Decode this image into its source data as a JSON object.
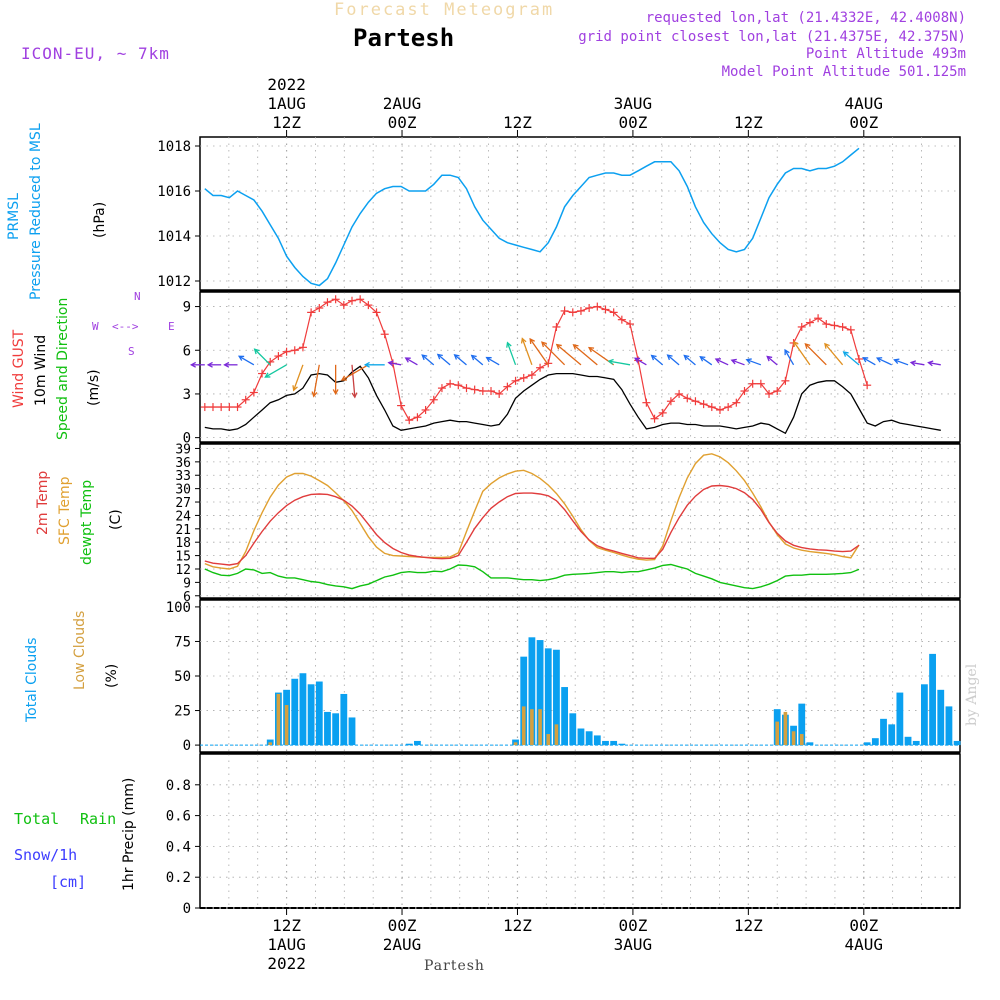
{
  "header": {
    "product": "Forecast Meteogram",
    "place": "Partesh",
    "model": "ICON-EU, ~ 7km",
    "requested": "requested lon,lat (21.4332E, 42.4008N)",
    "gridpoint": "grid point closest lon,lat (21.4375E, 42.375N)",
    "point_alt": "Point Altitude 493m",
    "model_alt": "Model Point Altitude 501.125m"
  },
  "footer": {
    "place": "Partesh",
    "credit": "by Angel"
  },
  "colors": {
    "pressure": "#0ca0f0",
    "gust": "#f03c3c",
    "wind": "#000000",
    "wind_dir": "#10c010",
    "t2m": "#e03c3c",
    "tsfc": "#e0a030",
    "dewpt": "#10c010",
    "total_clouds": "#0aa0f0",
    "low_clouds": "#d4a040",
    "snow": "#3c3cff",
    "legend_purple": "#a040e0",
    "grid": "#aaaaaa"
  },
  "chart_data": [
    {
      "type": "line",
      "id": "pressure",
      "title": "PRMSL Pressure Reduced to MSL",
      "legend": [
        "PRMSL",
        "Pressure Reduced to MSL"
      ],
      "ylabel": "(hPa)",
      "ylim": [
        1011.6,
        1018.4
      ],
      "yticks": [
        1012,
        1014,
        1016,
        1018
      ],
      "t0_hour": 0,
      "step_h": 1,
      "values": [
        1016.1,
        1015.8,
        1015.8,
        1015.7,
        1016.0,
        1015.8,
        1015.6,
        1015.1,
        1014.5,
        1013.9,
        1013.1,
        1012.6,
        1012.2,
        1011.9,
        1011.8,
        1012.1,
        1012.8,
        1013.6,
        1014.4,
        1015.0,
        1015.5,
        1015.9,
        1016.1,
        1016.2,
        1016.2,
        1016.0,
        1016.0,
        1016.0,
        1016.3,
        1016.7,
        1016.7,
        1016.6,
        1016.1,
        1015.3,
        1014.7,
        1014.3,
        1013.9,
        1013.7,
        1013.6,
        1013.5,
        1013.4,
        1013.3,
        1013.7,
        1014.4,
        1015.3,
        1015.8,
        1016.2,
        1016.6,
        1016.7,
        1016.8,
        1016.8,
        1016.7,
        1016.7,
        1016.9,
        1017.1,
        1017.3,
        1017.3,
        1017.3,
        1016.9,
        1016.2,
        1015.3,
        1014.6,
        1014.1,
        1013.7,
        1013.4,
        1013.3,
        1013.4,
        1013.9,
        1014.8,
        1015.7,
        1016.3,
        1016.8,
        1017.0,
        1017.0,
        1016.9,
        1017.0,
        1017.0,
        1017.1,
        1017.3,
        1017.6,
        1017.9
      ]
    },
    {
      "type": "line",
      "id": "wind",
      "legend": [
        "Wind GUST",
        "10m Wind",
        "Speed and Direction"
      ],
      "ylabel": "(m/s)",
      "compass": {
        "north": "N",
        "south": "S",
        "west": "W",
        "east": "E",
        "arrow": "<-->"
      },
      "ylim": [
        -0.3,
        10
      ],
      "yticks": [
        0,
        3,
        6,
        9
      ],
      "t0_hour": 0,
      "step_h": 1,
      "gust": [
        2.1,
        2.1,
        2.1,
        2.1,
        2.1,
        2.6,
        3.1,
        4.4,
        5.2,
        5.6,
        5.9,
        6.0,
        6.2,
        8.6,
        8.9,
        9.3,
        9.5,
        9.1,
        9.4,
        9.5,
        9.1,
        8.6,
        7.1,
        5.1,
        2.2,
        1.2,
        1.4,
        1.9,
        2.6,
        3.4,
        3.7,
        3.6,
        3.4,
        3.3,
        3.2,
        3.2,
        3.0,
        3.5,
        3.9,
        4.1,
        4.3,
        4.8,
        5.1,
        7.6,
        8.7,
        8.6,
        8.7,
        8.9,
        9.0,
        8.8,
        8.6,
        8.1,
        7.8,
        5.3,
        2.4,
        1.3,
        1.7,
        2.5,
        3.0,
        2.7,
        2.5,
        2.3,
        2.1,
        1.9,
        2.1,
        2.4,
        3.2,
        3.7,
        3.7,
        3.0,
        3.2,
        3.9,
        6.5,
        7.6,
        7.9,
        8.2,
        7.8,
        7.7,
        7.6,
        7.4,
        5.4,
        3.6
      ],
      "wind": [
        0.7,
        0.6,
        0.6,
        0.5,
        0.6,
        0.9,
        1.4,
        1.9,
        2.4,
        2.6,
        2.9,
        3.0,
        3.4,
        4.3,
        4.4,
        4.3,
        3.8,
        3.9,
        4.5,
        4.9,
        4.1,
        2.9,
        1.9,
        0.8,
        0.5,
        0.6,
        0.7,
        0.8,
        1.0,
        1.1,
        1.2,
        1.1,
        1.1,
        1.0,
        0.9,
        0.8,
        0.9,
        1.6,
        2.7,
        3.2,
        3.6,
        4.0,
        4.3,
        4.4,
        4.4,
        4.4,
        4.3,
        4.2,
        4.2,
        4.1,
        4.0,
        3.3,
        2.3,
        1.4,
        0.6,
        0.7,
        0.9,
        1.0,
        1.0,
        0.9,
        0.9,
        0.8,
        0.8,
        0.8,
        0.7,
        0.6,
        0.7,
        0.8,
        1.0,
        0.9,
        0.6,
        0.3,
        1.4,
        3.0,
        3.6,
        3.8,
        3.9,
        3.9,
        3.5,
        3.0,
        2.0,
        1.0,
        0.8,
        1.1,
        1.2,
        1.0,
        0.9,
        0.8,
        0.7,
        0.6,
        0.5
      ],
      "arrow_dirs": [
        270,
        270,
        270,
        270,
        270,
        270,
        240,
        240,
        225,
        220,
        300,
        330,
        340,
        345,
        350,
        355,
        0,
        0,
        5,
        10,
        300,
        270,
        270,
        270,
        260,
        250,
        240,
        230,
        230,
        230,
        230,
        230,
        230,
        230,
        230,
        230,
        240,
        210,
        200,
        180,
        200,
        210,
        215,
        220,
        225,
        225,
        230,
        230,
        230,
        230,
        235,
        240,
        260,
        250,
        240,
        230,
        230,
        230,
        230,
        230,
        230,
        230,
        235,
        240,
        245,
        250,
        250,
        240,
        250,
        260,
        230,
        210,
        210,
        210,
        215,
        220,
        225,
        225,
        220,
        215,
        230,
        240,
        240,
        240,
        245,
        250,
        250,
        255,
        260,
        260,
        260,
        265,
        270
      ]
    },
    {
      "type": "line",
      "id": "temperature",
      "legend": [
        "2m Temp",
        "SFC Temp",
        "dewpt Temp"
      ],
      "ylabel": "(C)",
      "ylim": [
        5.5,
        40
      ],
      "yticks": [
        6,
        9,
        12,
        15,
        18,
        21,
        24,
        27,
        30,
        33,
        36,
        39
      ],
      "t0_hour": 0,
      "step_h": 1,
      "t2m": [
        13.8,
        13.3,
        13.1,
        12.9,
        13.2,
        15.0,
        17.8,
        20.4,
        22.7,
        24.6,
        26.2,
        27.4,
        28.2,
        28.7,
        28.8,
        28.7,
        28.2,
        27.4,
        26.1,
        24.3,
        22.0,
        19.7,
        17.9,
        16.6,
        15.7,
        15.1,
        14.8,
        14.6,
        14.4,
        14.3,
        14.4,
        15.0,
        18.0,
        21.1,
        23.5,
        25.6,
        27.0,
        28.2,
        28.9,
        29.0,
        29.0,
        28.8,
        28.4,
        27.3,
        25.3,
        22.8,
        20.4,
        18.5,
        17.2,
        16.5,
        16.0,
        15.5,
        15.0,
        14.5,
        14.4,
        14.4,
        16.4,
        20.2,
        23.5,
        26.3,
        28.3,
        29.8,
        30.6,
        30.7,
        30.5,
        30.0,
        29.1,
        27.6,
        25.3,
        22.4,
        20.0,
        18.3,
        17.3,
        16.8,
        16.5,
        16.3,
        16.2,
        16.0,
        15.9,
        16.0,
        17.3
      ],
      "tsfc": [
        13.2,
        12.5,
        12.2,
        12.0,
        12.6,
        15.9,
        20.6,
        24.6,
        28.1,
        30.8,
        32.6,
        33.4,
        33.4,
        32.8,
        31.8,
        30.7,
        29.1,
        27.3,
        25.1,
        22.2,
        19.2,
        16.9,
        15.5,
        15.0,
        14.9,
        14.8,
        14.7,
        14.6,
        14.6,
        14.6,
        14.7,
        15.6,
        20.4,
        25.0,
        29.4,
        31.1,
        32.4,
        33.3,
        33.9,
        34.1,
        33.4,
        32.3,
        30.8,
        28.9,
        26.6,
        23.8,
        20.8,
        18.4,
        16.8,
        16.2,
        15.7,
        15.1,
        14.6,
        14.2,
        14.0,
        14.1,
        17.2,
        22.8,
        28.0,
        32.4,
        35.6,
        37.5,
        37.8,
        37.1,
        35.8,
        34.0,
        31.8,
        29.0,
        25.9,
        22.5,
        19.7,
        17.6,
        16.7,
        16.2,
        15.9,
        15.7,
        15.5,
        15.2,
        14.8,
        14.5,
        17.4
      ],
      "dewpt": [
        12.0,
        11.2,
        10.6,
        10.5,
        11.0,
        12.0,
        11.8,
        11.0,
        11.2,
        10.4,
        10.0,
        10.0,
        9.6,
        9.2,
        9.0,
        8.5,
        8.2,
        8.0,
        7.6,
        8.2,
        8.6,
        9.4,
        10.2,
        10.6,
        11.2,
        11.4,
        11.2,
        11.2,
        11.5,
        11.4,
        12.0,
        12.9,
        12.8,
        12.5,
        11.4,
        10.0,
        10.0,
        10.0,
        9.8,
        9.6,
        9.6,
        9.4,
        9.6,
        10.0,
        10.6,
        10.8,
        10.9,
        11.0,
        11.2,
        11.4,
        11.4,
        11.2,
        11.4,
        11.4,
        11.8,
        12.2,
        12.8,
        13.0,
        12.5,
        12.0,
        11.0,
        10.4,
        9.8,
        9.0,
        8.6,
        8.2,
        7.8,
        7.6,
        8.0,
        8.6,
        9.4,
        10.4,
        10.6,
        10.6,
        10.8,
        10.8,
        10.8,
        10.9,
        11.0,
        11.2,
        11.9
      ]
    },
    {
      "type": "bar",
      "id": "clouds",
      "legend": [
        "Total Clouds",
        "Low Clouds"
      ],
      "ylabel": "(%)",
      "ylim": [
        -5,
        105
      ],
      "yticks": [
        0,
        25,
        50,
        75,
        100
      ],
      "t0_hour": 0,
      "step_h": 1,
      "total": [
        0,
        0,
        0,
        0,
        0,
        0,
        0,
        0,
        4,
        38,
        40,
        48,
        52,
        44,
        46,
        24,
        23,
        37,
        20,
        0,
        0,
        0,
        0,
        0,
        0,
        1,
        3,
        0,
        0,
        0,
        0,
        0,
        0,
        0,
        0,
        0,
        0,
        0,
        4,
        64,
        78,
        76,
        70,
        69,
        42,
        23,
        12,
        10,
        7,
        3,
        3,
        1,
        0,
        0,
        0,
        0,
        0,
        0,
        0,
        0,
        0,
        0,
        0,
        0,
        0,
        0,
        0,
        0,
        0,
        0,
        26,
        22,
        14,
        30,
        2,
        0,
        0,
        0,
        0,
        0,
        0,
        2,
        5,
        19,
        15,
        38,
        6,
        3,
        44,
        66,
        40,
        28,
        3
      ],
      "low": [
        0,
        0,
        0,
        0,
        0,
        0,
        0,
        0,
        2,
        37,
        29,
        0,
        0,
        0,
        0,
        0,
        0,
        0,
        0,
        0,
        0,
        0,
        0,
        0,
        0,
        0,
        0,
        0,
        0,
        0,
        0,
        0,
        0,
        0,
        0,
        0,
        0,
        0,
        2,
        28,
        26,
        26,
        8,
        15,
        0,
        0,
        0,
        0,
        0,
        0,
        0,
        0,
        0,
        0,
        0,
        0,
        0,
        0,
        0,
        0,
        0,
        0,
        0,
        0,
        0,
        0,
        0,
        0,
        0,
        0,
        17,
        24,
        10,
        8,
        0,
        0,
        0,
        0,
        0,
        0,
        0,
        0,
        0,
        0,
        0,
        0,
        0,
        0,
        0,
        0,
        0,
        0,
        0
      ]
    },
    {
      "type": "bar",
      "id": "precip",
      "legend": [
        "Total",
        "Rain",
        "Snow/1h",
        "[cm]"
      ],
      "ylabel": "1hr Precip (mm)",
      "ylim": [
        0,
        1.0
      ],
      "yticks": [
        0,
        0.2,
        0.4,
        0.6,
        0.8
      ],
      "ytick_labels": [
        "0",
        "0.2",
        "0.4",
        "0.6",
        "0.8"
      ],
      "values": []
    }
  ],
  "time_axis": {
    "top": [
      {
        "hour": 0,
        "label": [
          "2022",
          "1AUG",
          "12Z"
        ]
      },
      {
        "hour": 12,
        "label": [
          "2AUG",
          "00Z"
        ]
      },
      {
        "hour": 24,
        "label": [
          "12Z"
        ]
      },
      {
        "hour": 36,
        "label": [
          "3AUG",
          "00Z"
        ]
      },
      {
        "hour": 48,
        "label": [
          "12Z"
        ]
      },
      {
        "hour": 60,
        "label": [
          "4AUG",
          "00Z"
        ]
      }
    ],
    "bottom": [
      {
        "hour": 0,
        "label": [
          "12Z",
          "1AUG",
          "2022"
        ]
      },
      {
        "hour": 12,
        "label": [
          "00Z",
          "2AUG"
        ]
      },
      {
        "hour": 24,
        "label": [
          "12Z"
        ]
      },
      {
        "hour": 36,
        "label": [
          "00Z",
          "3AUG"
        ]
      },
      {
        "hour": 48,
        "label": [
          "12Z"
        ]
      },
      {
        "hour": 60,
        "label": [
          "00Z",
          "4AUG"
        ]
      }
    ]
  }
}
